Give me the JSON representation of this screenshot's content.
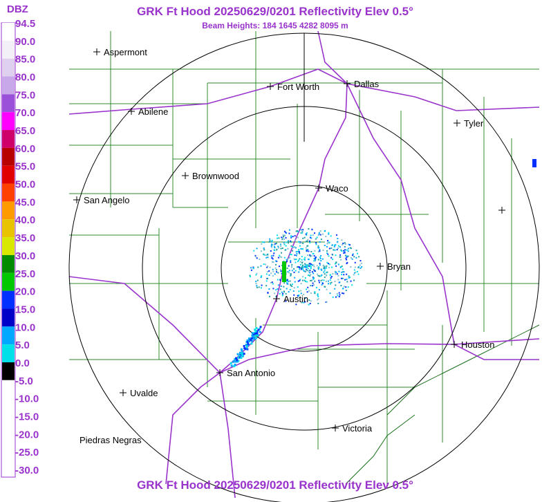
{
  "header": {
    "title": "GRK Ft Hood 20250629/0201 Reflectivity Elev 0.5°",
    "subtitle": "Beam Heights: 184 1645 4282 8095 m",
    "footer": "GRK Ft Hood 20250629/0201 Reflectivity Elev 0.5°"
  },
  "legend": {
    "unit": "DBZ",
    "labels": [
      "94.5",
      "90.0",
      "85.0",
      "80.0",
      "75.0",
      "70.0",
      "65.0",
      "60.0",
      "55.0",
      "50.0",
      "45.0",
      "40.0",
      "35.0",
      "30.0",
      "25.0",
      "20.0",
      "15.0",
      "10.0",
      "5.0",
      "0.0",
      "-5.0",
      "-10.0",
      "-15.0",
      "-20.0",
      "-25.0",
      "-30.0"
    ],
    "colors": [
      "#ffffff",
      "#f4f0f8",
      "#e0d0f0",
      "#c8a8e8",
      "#9a50d8",
      "#ff00ff",
      "#d0006a",
      "#b80000",
      "#e00000",
      "#ff4000",
      "#ff9a00",
      "#e8c400",
      "#d8e800",
      "#008c00",
      "#00c800",
      "#0030ff",
      "#0000c8",
      "#00a8ff",
      "#00e0e8",
      "#000000",
      "#ffffff",
      "#ffffff",
      "#ffffff",
      "#ffffff",
      "#ffffff"
    ]
  },
  "cities": [
    "Aspermont",
    "Fort Worth",
    "Dallas",
    "Abilene",
    "Tyler",
    "Brownwood",
    "Waco",
    "San Angelo",
    "Bryan",
    "Austin",
    "Houston",
    "San Antonio",
    "Uvalde",
    "Victoria",
    "Piedras Negras"
  ]
}
